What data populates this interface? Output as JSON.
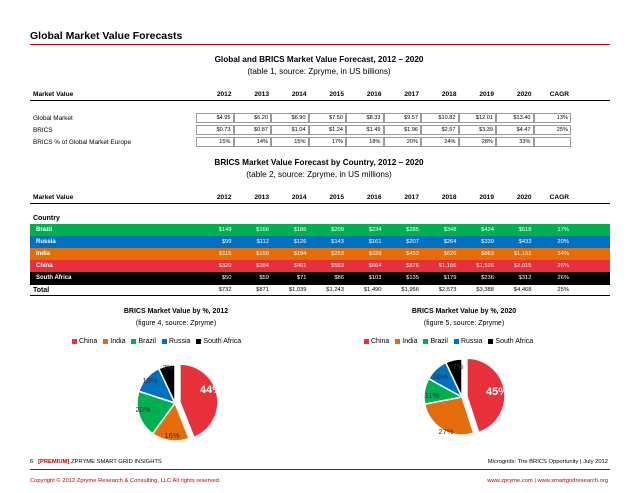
{
  "section_title": "Global Market Value Forecasts",
  "table1": {
    "title": "Global and BRICS Market Value Forecast, 2012 – 2020",
    "subtitle": "(table 1, source: Zpryme, in US billions)",
    "header": [
      "Market Value",
      "2012",
      "2013",
      "2014",
      "2015",
      "2016",
      "2017",
      "2018",
      "2019",
      "2020",
      "CAGR"
    ],
    "rows": [
      {
        "label": "Global Market",
        "values": [
          "$4.95",
          "$6.20",
          "$6.90",
          "$7.50",
          "$8.33",
          "$9.57",
          "$10.82",
          "$12.01",
          "$13.40",
          "13%"
        ]
      },
      {
        "label": "BRICS",
        "values": [
          "$0.73",
          "$0.87",
          "$1.04",
          "$1.24",
          "$1.49",
          "$1.96",
          "$2.57",
          "$3.39",
          "$4.47",
          "25%"
        ]
      },
      {
        "label": "BRICS % of Global Market Europe",
        "values": [
          "15%",
          "14%",
          "15%",
          "17%",
          "18%",
          "20%",
          "24%",
          "28%",
          "33%",
          ""
        ]
      }
    ]
  },
  "table2": {
    "title": "BRICS Market Value Forecast by Country, 2012 – 2020",
    "subtitle": "(table 2, source: Zpryme, in US millions)",
    "header": [
      "Market Value",
      "2012",
      "2013",
      "2014",
      "2015",
      "2016",
      "2017",
      "2018",
      "2019",
      "2020",
      "CAGR"
    ],
    "country_label": "Country",
    "rows": [
      {
        "label": "Brazil",
        "color": "#00b050",
        "values": [
          "$149",
          "$166",
          "$186",
          "$209",
          "$234",
          "$285",
          "$348",
          "$424",
          "$518",
          "17%"
        ]
      },
      {
        "label": "Russia",
        "color": "#0070c0",
        "values": [
          "$99",
          "$112",
          "$126",
          "$143",
          "$161",
          "$207",
          "$264",
          "$339",
          "$433",
          "20%"
        ]
      },
      {
        "label": "India",
        "color": "#e46c0a",
        "values": [
          "$115",
          "$150",
          "$194",
          "$253",
          "$328",
          "$453",
          "$626",
          "$863",
          "$1,191",
          "34%"
        ]
      },
      {
        "label": "China",
        "color": "#e8303a",
        "values": [
          "$320",
          "$384",
          "$461",
          "$553",
          "$664",
          "$876",
          "$1,156",
          "$1,526",
          "$2,015",
          "26%"
        ]
      },
      {
        "label": "South Africa",
        "color": "#000000",
        "values": [
          "$50",
          "$59",
          "$71",
          "$86",
          "$103",
          "$135",
          "$179",
          "$236",
          "$312",
          "26%"
        ]
      }
    ],
    "total": {
      "label": "Total",
      "values": [
        "$732",
        "$871",
        "$1,039",
        "$1,243",
        "$1,490",
        "$1,956",
        "$2,573",
        "$3,388",
        "$4,468",
        "25%"
      ]
    }
  },
  "chart_data": [
    {
      "type": "pie",
      "title": "BRICS Market Value by %, 2012",
      "subtitle": "(figure 4, source: Zpryme)",
      "categories": [
        "China",
        "India",
        "Brazil",
        "Russia",
        "South Africa"
      ],
      "values": [
        44,
        16,
        20,
        13,
        7
      ],
      "labels": [
        "44%",
        "16%",
        "20%",
        "13%",
        "7%"
      ],
      "colors": [
        "#e8303a",
        "#e46c0a",
        "#00b050",
        "#0070c0",
        "#000000"
      ],
      "legend": "top"
    },
    {
      "type": "pie",
      "title": "BRICS Market Value by %, 2020",
      "subtitle": "(figure 5, source: Zpryme)",
      "categories": [
        "China",
        "India",
        "Brazil",
        "Russia",
        "South Africa"
      ],
      "values": [
        45,
        27,
        11,
        10,
        7
      ],
      "labels": [
        "45%",
        "27%",
        "11%",
        "10%",
        "7%"
      ],
      "colors": [
        "#e8303a",
        "#e46c0a",
        "#00b050",
        "#0070c0",
        "#000000"
      ],
      "legend": "top"
    }
  ],
  "footer": {
    "page_number": "6",
    "premium": "[PREMIUM]",
    "brand": "ZPRYME SMART GRID INSIGHTS",
    "report": "Microgrids: The BRICS Opportunity | July 2012",
    "copyright": "Copyright © 2012 Zpryme Research & Consulting, LLC All rights reserved.",
    "website": "www.zpryme.com | www.smartgridresearch.org"
  }
}
